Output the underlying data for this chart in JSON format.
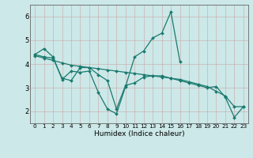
{
  "xlabel": "Humidex (Indice chaleur)",
  "xlim": [
    -0.5,
    23.5
  ],
  "ylim": [
    1.5,
    6.5
  ],
  "yticks": [
    2,
    3,
    4,
    5,
    6
  ],
  "xticks": [
    0,
    1,
    2,
    3,
    4,
    5,
    6,
    7,
    8,
    9,
    10,
    11,
    12,
    13,
    14,
    15,
    16,
    17,
    18,
    19,
    20,
    21,
    22,
    23
  ],
  "background_color": "#cce8e8",
  "grid_color": "#b0d0d0",
  "line_color": "#1a7a6e",
  "lines": [
    {
      "x": [
        0,
        1,
        2,
        3,
        4,
        5,
        6,
        7,
        8,
        9,
        10,
        11,
        12,
        13,
        14,
        15,
        16
      ],
      "y": [
        4.4,
        4.65,
        4.3,
        3.35,
        3.7,
        3.65,
        3.7,
        2.8,
        2.1,
        1.9,
        3.05,
        4.3,
        4.55,
        5.1,
        5.3,
        6.2,
        4.1
      ]
    },
    {
      "x": [
        0,
        1,
        2,
        3,
        4,
        5,
        6,
        7,
        8,
        9,
        10,
        11,
        12,
        13,
        14,
        15,
        16,
        17,
        18,
        19,
        20,
        21,
        22,
        23
      ],
      "y": [
        4.4,
        4.3,
        4.25,
        3.4,
        3.3,
        3.85,
        3.85,
        3.55,
        3.3,
        2.1,
        3.1,
        3.2,
        3.45,
        3.5,
        3.5,
        3.4,
        3.3,
        3.2,
        3.1,
        3.0,
        3.05,
        2.6,
        1.75,
        2.2
      ]
    },
    {
      "x": [
        0,
        1,
        2,
        3,
        4,
        5,
        6,
        7,
        8,
        9,
        10,
        11,
        12,
        13,
        14,
        15,
        16,
        17,
        18,
        19,
        20,
        21,
        22,
        23
      ],
      "y": [
        4.35,
        4.25,
        4.15,
        4.05,
        3.95,
        3.9,
        3.85,
        3.8,
        3.75,
        3.7,
        3.65,
        3.6,
        3.55,
        3.5,
        3.45,
        3.4,
        3.35,
        3.25,
        3.15,
        3.05,
        2.85,
        2.65,
        2.2,
        2.2
      ]
    }
  ]
}
